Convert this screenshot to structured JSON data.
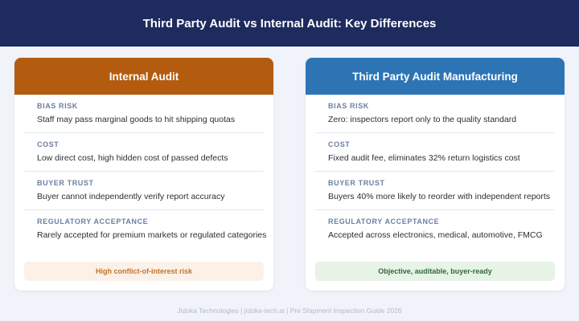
{
  "header": {
    "title": "Third Party Audit vs Internal Audit: Key Differences"
  },
  "colors": {
    "header_bg": "#1e2b5e",
    "internal_accent": "#b35c10",
    "third_party_accent": "#2d74b5",
    "internal_badge_text": "#c0742c",
    "third_party_badge_text": "#2f6b36"
  },
  "internal": {
    "title": "Internal Audit",
    "rows": [
      {
        "label": "BIAS RISK",
        "value": "Staff may pass marginal goods to hit shipping quotas"
      },
      {
        "label": "COST",
        "value": "Low direct cost, high hidden cost of passed defects"
      },
      {
        "label": "BUYER TRUST",
        "value": "Buyer cannot independently verify report accuracy"
      },
      {
        "label": "REGULATORY ACCEPTANCE",
        "value": "Rarely accepted for premium markets or regulated categories"
      }
    ],
    "badge": "High conflict-of-interest risk"
  },
  "third_party": {
    "title": "Third Party Audit Manufacturing",
    "rows": [
      {
        "label": "BIAS RISK",
        "value": "Zero: inspectors report only to the quality standard"
      },
      {
        "label": "COST",
        "value": "Fixed audit fee, eliminates 32% return logistics cost"
      },
      {
        "label": "BUYER TRUST",
        "value": "Buyers 40% more likely to reorder with independent reports"
      },
      {
        "label": "REGULATORY ACCEPTANCE",
        "value": "Accepted across electronics, medical, automotive, FMCG"
      }
    ],
    "badge": "Objective, auditable, buyer-ready"
  },
  "footer": {
    "text": "Jidoka Technologies | jidoka-tech.ai | Pre Shipment Inspection Guide 2026"
  }
}
